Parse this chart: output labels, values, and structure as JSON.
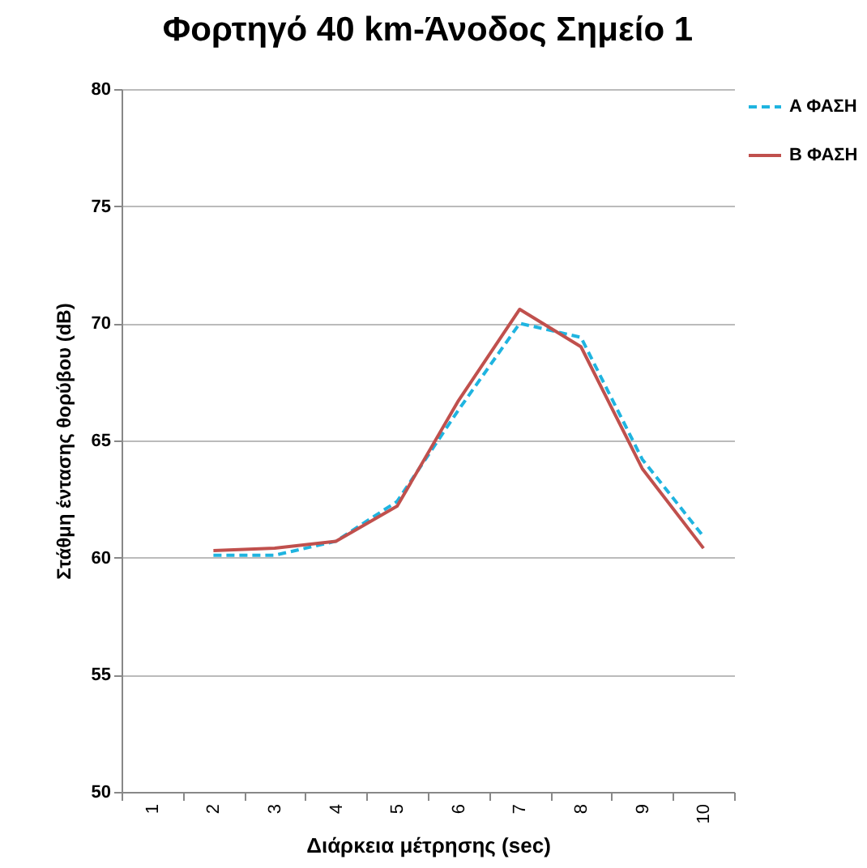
{
  "chart_data": {
    "type": "line",
    "title": "Φορτηγό 40 km-Άνοδος Σημείο 1",
    "xlabel": "Διάρκεια μέτρησης (sec)",
    "ylabel": "Στάθμη έντασης θορύβου (dB)",
    "categories": [
      "1",
      "2",
      "3",
      "4",
      "5",
      "6",
      "7",
      "8",
      "9",
      "10"
    ],
    "series": [
      {
        "name": "A ΦΑΣΗ",
        "color": "#1fb4e0",
        "line_style": "dashed",
        "values": [
          null,
          60.1,
          60.1,
          60.7,
          62.4,
          66.3,
          70.0,
          69.4,
          64.2,
          60.9
        ]
      },
      {
        "name": "B ΦΑΣΗ",
        "color": "#c0504d",
        "line_style": "solid",
        "values": [
          null,
          60.3,
          60.4,
          60.7,
          62.2,
          66.7,
          70.6,
          69.0,
          63.8,
          60.4
        ]
      }
    ],
    "ylim": [
      50,
      80
    ],
    "yticks": [
      50,
      55,
      60,
      65,
      70,
      75,
      80
    ],
    "grid": "y",
    "legend": "right",
    "marker": "none"
  }
}
